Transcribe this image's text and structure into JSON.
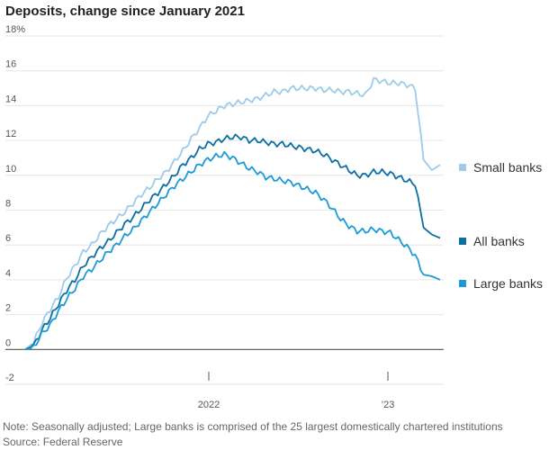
{
  "chart_data": {
    "type": "line",
    "title": "Deposits, change since January 2021",
    "xlabel": "",
    "ylabel": "",
    "ylim": [
      -2,
      18
    ],
    "y_ticks": [
      "18%",
      "16",
      "14",
      "12",
      "10",
      "8",
      "6",
      "4",
      "2",
      "0",
      "-2"
    ],
    "x_ticks": [
      "2022",
      "’23"
    ],
    "grid": "horizontal",
    "legend": "right, aligned to line ends",
    "series": [
      {
        "name": "Small banks",
        "color": "#9dcbea",
        "values": [
          0.0,
          0.4,
          1.5,
          2.3,
          3.0,
          4.1,
          4.8,
          5.6,
          6.0,
          6.6,
          7.1,
          7.5,
          7.9,
          8.4,
          8.9,
          9.3,
          9.8,
          10.2,
          10.8,
          11.4,
          12.1,
          12.7,
          13.4,
          13.7,
          14.0,
          14.1,
          14.2,
          14.3,
          14.4,
          14.6,
          14.8,
          14.8,
          15.0,
          15.0,
          15.0,
          15.0,
          14.9,
          14.9,
          14.8,
          14.8,
          14.7,
          14.6,
          15.5,
          15.4,
          15.3,
          15.3,
          15.2,
          15.0,
          10.9,
          10.3,
          10.6
        ]
      },
      {
        "name": "All banks",
        "color": "#0b6fa4",
        "values": [
          0.0,
          0.2,
          1.1,
          1.8,
          2.6,
          3.4,
          4.0,
          4.8,
          5.3,
          5.8,
          6.2,
          6.7,
          7.2,
          7.6,
          8.1,
          8.6,
          9.0,
          9.5,
          10.0,
          10.6,
          11.0,
          11.5,
          11.8,
          11.9,
          12.1,
          12.2,
          12.2,
          12.0,
          12.0,
          11.9,
          11.8,
          11.8,
          11.7,
          11.6,
          11.5,
          11.4,
          11.2,
          10.9,
          10.6,
          10.3,
          10.0,
          10.0,
          10.2,
          10.2,
          10.1,
          9.9,
          9.7,
          9.5,
          7.0,
          6.6,
          6.4
        ]
      },
      {
        "name": "Large banks",
        "color": "#1a9bd7",
        "values": [
          0.0,
          0.1,
          0.9,
          1.4,
          2.2,
          2.9,
          3.5,
          4.2,
          4.6,
          5.1,
          5.6,
          6.0,
          6.5,
          6.9,
          7.4,
          7.9,
          8.4,
          8.9,
          9.4,
          9.8,
          10.2,
          10.6,
          10.9,
          11.1,
          11.2,
          11.0,
          10.7,
          10.4,
          10.2,
          9.9,
          9.8,
          9.7,
          9.6,
          9.4,
          9.2,
          9.0,
          8.6,
          8.1,
          7.5,
          7.1,
          6.8,
          6.8,
          6.9,
          6.8,
          6.7,
          6.3,
          5.9,
          5.4,
          4.3,
          4.2,
          4.0
        ]
      }
    ]
  },
  "footnotes": {
    "note": "Note: Seasonally adjusted; Large banks is comprised of the 25 largest domestically chartered institutions",
    "source": "Source: Federal Reserve"
  }
}
